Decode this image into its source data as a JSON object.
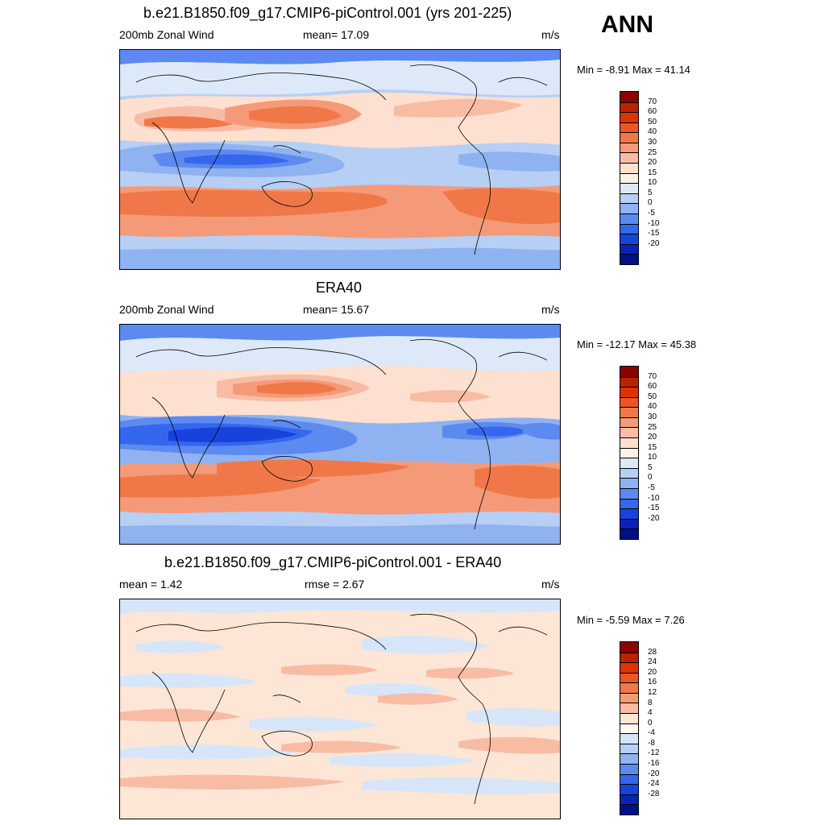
{
  "season": "ANN",
  "panels": [
    {
      "title": "b.e21.B1850.f09_g17.CMIP6-piControl.001 (yrs 201-225)",
      "left_label": "200mb Zonal Wind",
      "center_label": "mean=  17.09",
      "right_label": "m/s",
      "minmax": "Min =  -8.91 Max =  41.14",
      "colorbar_labels": [
        "70",
        "60",
        "50",
        "40",
        "30",
        "25",
        "20",
        "15",
        "10",
        "5",
        "0",
        "-5",
        "-10",
        "-15",
        "-20"
      ]
    },
    {
      "title": "ERA40",
      "left_label": "200mb Zonal Wind",
      "center_label": "mean=  15.67",
      "right_label": "m/s",
      "minmax": "Min = -12.17 Max =  45.38",
      "colorbar_labels": [
        "70",
        "60",
        "50",
        "40",
        "30",
        "25",
        "20",
        "15",
        "10",
        "5",
        "0",
        "-5",
        "-10",
        "-15",
        "-20"
      ]
    },
    {
      "title": "b.e21.B1850.f09_g17.CMIP6-piControl.001 - ERA40",
      "left_label": "mean =   1.42",
      "center_label": "rmse =   2.67",
      "right_label": "m/s",
      "minmax": "Min =  -5.59 Max =   7.26",
      "colorbar_labels": [
        "28",
        "24",
        "20",
        "16",
        "12",
        "8",
        "4",
        "0",
        "-4",
        "-8",
        "-12",
        "-16",
        "-20",
        "-24",
        "-28"
      ]
    }
  ],
  "colors": {
    "full_scale": [
      "#8b0000",
      "#bb2200",
      "#dd3300",
      "#ee5522",
      "#f07848",
      "#f59a78",
      "#f8bca5",
      "#fde0d0",
      "#fdf2e6",
      "#dde9f8",
      "#b7cff5",
      "#8fb2f0",
      "#5c8af0",
      "#3566ee",
      "#1742dc",
      "#0a22b8",
      "#000f8a"
    ],
    "diff_scale": [
      "#8b0000",
      "#bb2200",
      "#dd3300",
      "#ee5522",
      "#f07848",
      "#f59a78",
      "#f8bca5",
      "#fde6d6",
      "#fff8f0",
      "#d6e6f8",
      "#b7cff5",
      "#8fb2f0",
      "#5c8af0",
      "#3566ee",
      "#1742dc",
      "#0a22b8",
      "#000f8a"
    ]
  }
}
